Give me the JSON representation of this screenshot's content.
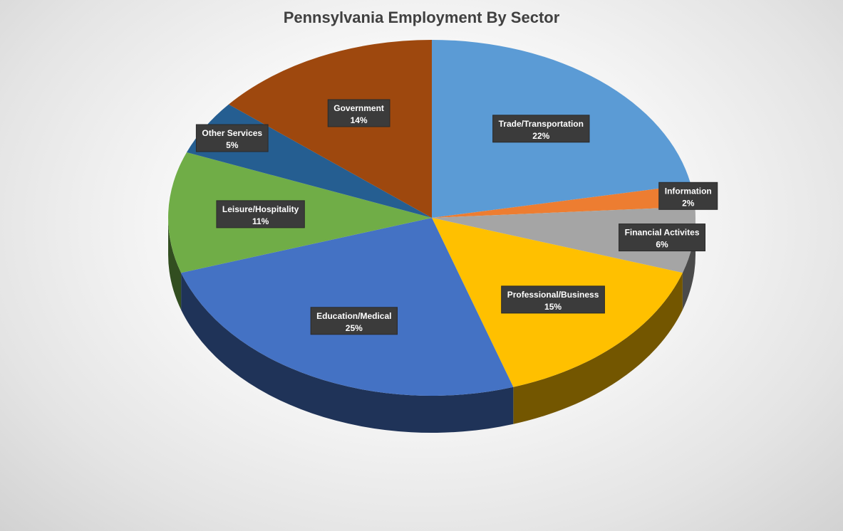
{
  "chart_data": {
    "type": "pie",
    "title": "Pennsylvania Employment By Sector",
    "slices": [
      {
        "label": "Trade/Transportation",
        "value": 22,
        "value_label": "22%",
        "color": "#5b9bd5"
      },
      {
        "label": "Information",
        "value": 2,
        "value_label": "2%",
        "color": "#ed7d31"
      },
      {
        "label": "Financial  Activites",
        "value": 6,
        "value_label": "6%",
        "color": "#a5a5a5"
      },
      {
        "label": "Professional/Business",
        "value": 15,
        "value_label": "15%",
        "color": "#ffc000"
      },
      {
        "label": "Education/Medical",
        "value": 25,
        "value_label": "25%",
        "color": "#4472c4"
      },
      {
        "label": "Leisure/Hospitality",
        "value": 11,
        "value_label": "11%",
        "color": "#70ad47"
      },
      {
        "label": "Other Services",
        "value": 5,
        "value_label": "5%",
        "color": "#255e91"
      },
      {
        "label": "Government",
        "value": 14,
        "value_label": "14%",
        "color": "#9e480e"
      }
    ]
  }
}
